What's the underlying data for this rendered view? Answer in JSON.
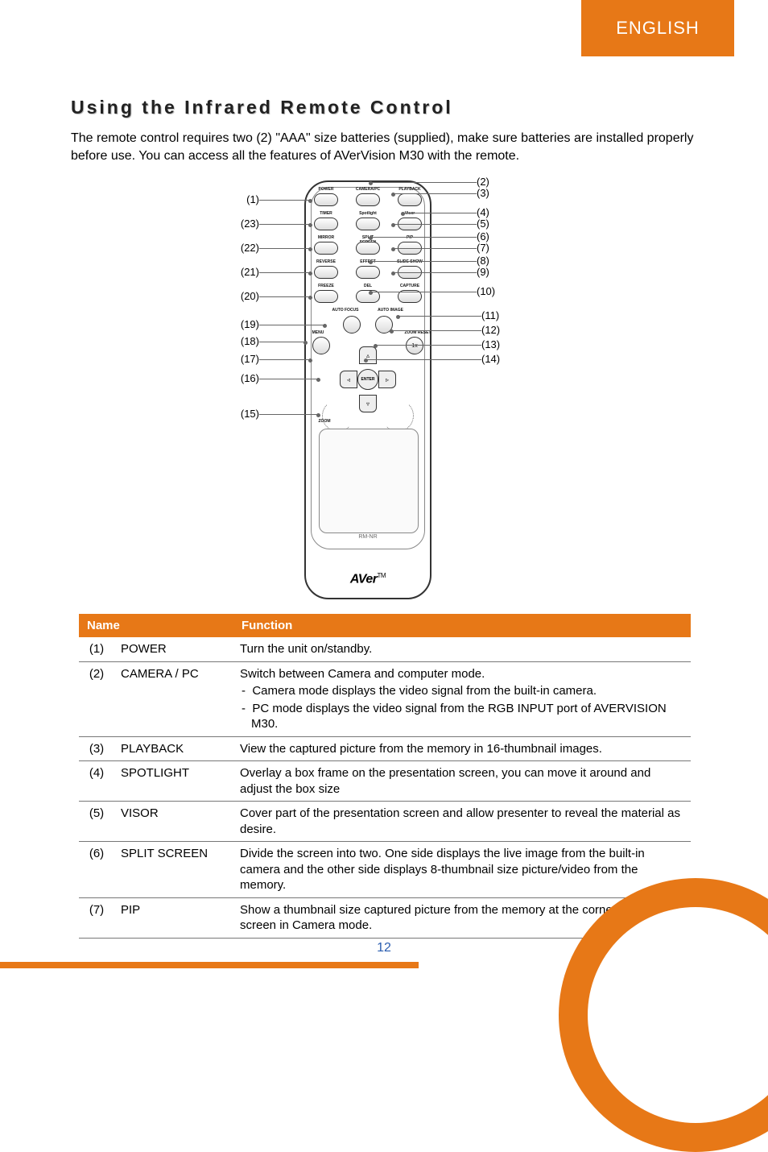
{
  "colors": {
    "accent": "#e77817",
    "text": "#000000",
    "link": "#2a5db0"
  },
  "header": {
    "language": "ENGLISH"
  },
  "page": {
    "number": "12"
  },
  "title": "Using the Infrared Remote Control",
  "intro": "The remote control requires two (2) \"AAA\" size batteries (supplied), make sure batteries are installed properly before use. You can access all the features of AVerVision M30 with the remote.",
  "remote": {
    "brand": "AVer",
    "tm": "TM",
    "model": "RM-NR",
    "left_callouts": [
      "(1)",
      "(23)",
      "(22)",
      "(21)",
      "(20)",
      "(19)",
      "(18)",
      "(17)",
      "(16)",
      "(15)"
    ],
    "right_callouts": [
      "(2)",
      "(3)",
      "(4)",
      "(5)",
      "(6)",
      "(7)",
      "(8)",
      "(9)",
      "(10)",
      "(11)",
      "(12)",
      "(13)",
      "(14)"
    ],
    "row0": [
      "POWER",
      "CAMERA/PC",
      "PLAYBACK"
    ],
    "row1": [
      "TIMER",
      "Spotlight",
      "Visor"
    ],
    "row2": [
      "MIRROR",
      "SPLIT SCREEN",
      "PIP"
    ],
    "row3": [
      "REVERSE",
      "EFFECT",
      "SLIDE SHOW"
    ],
    "row4": [
      "FREEZE",
      "DEL",
      "CAPTURE"
    ],
    "row5": [
      "AUTO FOCUS",
      "AUTO IMAGE"
    ],
    "side_left": "MENU",
    "side_right": "ZOOM RESET",
    "enter": "ENTER",
    "zoom": "ZOOM",
    "zoom_reset": "1x"
  },
  "table": {
    "head": {
      "name": "Name",
      "func": "Function"
    },
    "rows": [
      {
        "num": "(1)",
        "name": "POWER",
        "func": "Turn the unit on/standby."
      },
      {
        "num": "(2)",
        "name": "CAMERA / PC",
        "func": "Switch between Camera and computer mode.",
        "sub": [
          "Camera mode displays the video signal from the built-in camera.",
          "PC mode displays the video signal from the RGB INPUT port of AVERVISION M30."
        ]
      },
      {
        "num": "(3)",
        "name": "PLAYBACK",
        "func": "View the captured picture from the memory in 16-thumbnail images."
      },
      {
        "num": "(4)",
        "name": "SPOTLIGHT",
        "func": "Overlay a box frame on the presentation screen, you can move it around and adjust the box size"
      },
      {
        "num": "(5)",
        "name": "VISOR",
        "func": "Cover part of the presentation screen and allow presenter to reveal the material as desire."
      },
      {
        "num": "(6)",
        "name": "SPLIT SCREEN",
        "func": "Divide the screen into two. One side displays the live image from the built-in camera and the other side displays 8-thumbnail size picture/video from the memory."
      },
      {
        "num": "(7)",
        "name": "PIP",
        "func": "Show a thumbnail size captured picture from the memory at the corner of the screen in Camera mode."
      }
    ]
  }
}
